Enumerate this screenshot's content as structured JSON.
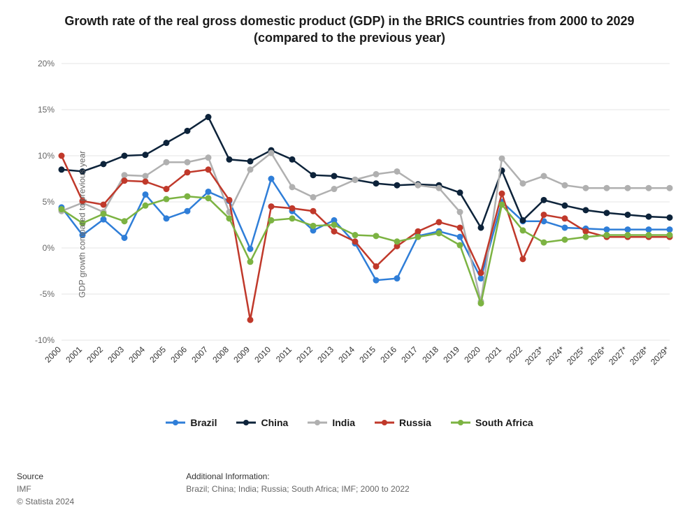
{
  "title": "Growth rate of the real gross domestic product (GDP) in the BRICS countries from 2000 to 2029 (compared to the previous year)",
  "y_axis_label": "GDP growth compared to previous year",
  "chart": {
    "type": "line",
    "background_color": "#ffffff",
    "grid_color": "#e6e6e6",
    "zero_line_color": "#888888",
    "line_width": 2.5,
    "marker_radius": 3.5,
    "tick_fontsize": 12,
    "ylim": [
      -10,
      20
    ],
    "yticks": [
      -10,
      -5,
      0,
      5,
      10,
      15,
      20
    ],
    "ytick_labels": [
      "-10%",
      "-5%",
      "0%",
      "5%",
      "10%",
      "15%",
      "20%"
    ],
    "categories": [
      "2000",
      "2001",
      "2002",
      "2003",
      "2004",
      "2005",
      "2006",
      "2007",
      "2008",
      "2009",
      "2010",
      "2011",
      "2012",
      "2013",
      "2014",
      "2015",
      "2016",
      "2017",
      "2018",
      "2019",
      "2020",
      "2021",
      "2022",
      "2023*",
      "2024*",
      "2025*",
      "2026*",
      "2027*",
      "2028*",
      "2029*"
    ],
    "series": [
      {
        "name": "Brazil",
        "color": "#2f7ed8",
        "values": [
          4.4,
          1.4,
          3.1,
          1.1,
          5.8,
          3.2,
          4.0,
          6.1,
          5.1,
          -0.1,
          7.5,
          4.0,
          1.9,
          3.0,
          0.5,
          -3.5,
          -3.3,
          1.3,
          1.8,
          1.2,
          -3.3,
          5.0,
          2.9,
          2.9,
          2.2,
          2.1,
          2.0,
          2.0,
          2.0,
          2.0
        ]
      },
      {
        "name": "China",
        "color": "#0d233a",
        "values": [
          8.5,
          8.3,
          9.1,
          10.0,
          10.1,
          11.4,
          12.7,
          14.2,
          9.6,
          9.4,
          10.6,
          9.6,
          7.9,
          7.8,
          7.4,
          7.0,
          6.8,
          6.9,
          6.8,
          6.0,
          2.2,
          8.4,
          3.0,
          5.2,
          4.6,
          4.1,
          3.8,
          3.6,
          3.4,
          3.3
        ]
      },
      {
        "name": "India",
        "color": "#b0b0b0",
        "values": [
          4.0,
          4.9,
          3.9,
          7.9,
          7.8,
          9.3,
          9.3,
          9.8,
          3.9,
          8.5,
          10.3,
          6.6,
          5.5,
          6.4,
          7.4,
          8.0,
          8.3,
          6.8,
          6.5,
          3.9,
          -5.8,
          9.7,
          7.0,
          7.8,
          6.8,
          6.5,
          6.5,
          6.5,
          6.5,
          6.5
        ]
      },
      {
        "name": "Russia",
        "color": "#c0392b",
        "values": [
          10.0,
          5.1,
          4.7,
          7.3,
          7.2,
          6.4,
          8.2,
          8.5,
          5.2,
          -7.8,
          4.5,
          4.3,
          4.0,
          1.8,
          0.7,
          -2.0,
          0.2,
          1.8,
          2.8,
          2.2,
          -2.7,
          5.9,
          -1.2,
          3.6,
          3.2,
          1.8,
          1.2,
          1.2,
          1.2,
          1.2
        ]
      },
      {
        "name": "South Africa",
        "color": "#7cb342",
        "values": [
          4.2,
          2.7,
          3.7,
          2.9,
          4.6,
          5.3,
          5.6,
          5.4,
          3.2,
          -1.5,
          3.0,
          3.2,
          2.4,
          2.5,
          1.4,
          1.3,
          0.7,
          1.2,
          1.6,
          0.3,
          -6.0,
          4.7,
          1.9,
          0.6,
          0.9,
          1.2,
          1.4,
          1.4,
          1.4,
          1.4
        ]
      }
    ]
  },
  "legend_labels": [
    "Brazil",
    "China",
    "India",
    "Russia",
    "South Africa"
  ],
  "footer": {
    "source_label": "Source",
    "source_value": "IMF",
    "copyright": "© Statista 2024",
    "addinfo_label": "Additional Information:",
    "addinfo_value": "Brazil; China; India; Russia; South Africa; IMF; 2000 to 2022"
  }
}
